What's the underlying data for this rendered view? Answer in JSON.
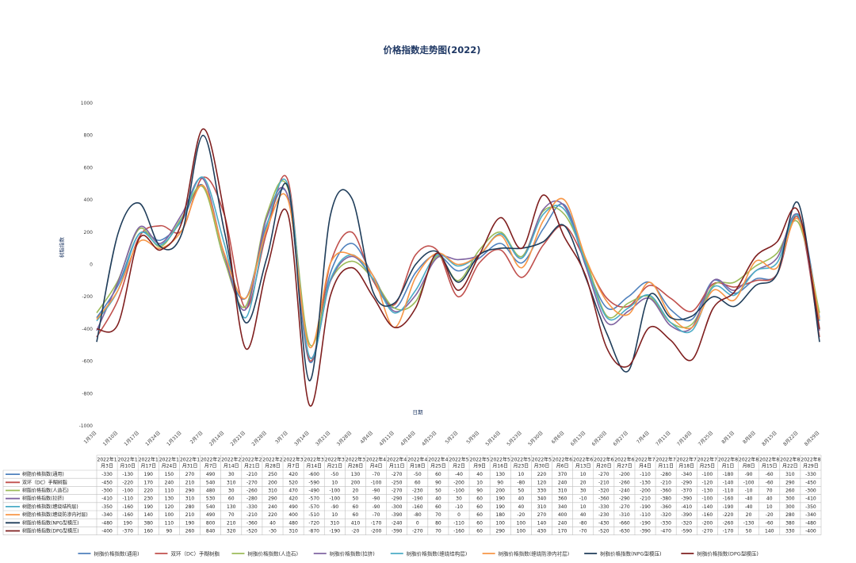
{
  "chart_data": {
    "type": "line",
    "title": "价格指数走势图(2022)",
    "xlabel": "日期",
    "ylabel": "树脂指数",
    "ylim": [
      -1000,
      1000
    ],
    "y_ticks": [
      "1000",
      "800",
      "600",
      "400",
      "200",
      "0",
      "-200",
      "-400",
      "-600",
      "-800",
      "-1000"
    ],
    "y_tick_values": [
      1000,
      800,
      600,
      400,
      200,
      0,
      -200,
      -400,
      -600,
      -800,
      -1000
    ],
    "x": [
      "1月3日",
      "1月10日",
      "1月17日",
      "1月24日",
      "1月31日",
      "2月7日",
      "2月14日",
      "2月21日",
      "2月28日",
      "3月7日",
      "3月14日",
      "3月21日",
      "3月28日",
      "4月4日",
      "4月11日",
      "4月18日",
      "4月25日",
      "5月2日",
      "5月9日",
      "5月16日",
      "5月23日",
      "5月30日",
      "6月6日",
      "6月13日",
      "6月20日",
      "6月27日",
      "7月4日",
      "7月11日",
      "7月18日",
      "7月25日",
      "8月1日",
      "8月8日",
      "8月15日",
      "8月22日",
      "8月29日"
    ],
    "x_table": [
      "2022年1月3日",
      "2022年1月10日",
      "2022年1月17日",
      "2022年1月24日",
      "2022年1月31日",
      "2022年2月7日",
      "2022年2月14日",
      "2022年2月21日",
      "2022年2月28日",
      "2022年3月7日",
      "2022年3月14日",
      "2022年3月21日",
      "2022年3月28日",
      "2022年4月4日",
      "2022年4月11日",
      "2022年4月18日",
      "2022年4月25日",
      "2022年5月2日",
      "2022年5月9日",
      "2022年5月16日",
      "2022年5月23日",
      "2022年5月30日",
      "2022年6月6日",
      "2022年6月13日",
      "2022年6月20日",
      "2022年6月27日",
      "2022年7月4日",
      "2022年7月11日",
      "2022年7月18日",
      "2022年7月25日",
      "2022年8月1日",
      "2022年8月8日",
      "2022年8月15日",
      "2022年8月22日",
      "2022年8月29日"
    ],
    "legend_position": "bottom",
    "grid": false,
    "series": [
      {
        "name": "树脂价格指数(通用)",
        "color": "#4F81BD",
        "values": [
          -330,
          -130,
          190,
          150,
          270,
          490,
          30,
          -210,
          250,
          420,
          -600,
          -50,
          130,
          -70,
          -270,
          -50,
          60,
          -40,
          40,
          130,
          10,
          220,
          370,
          10,
          -270,
          -200,
          -110,
          -280,
          -340,
          -100,
          -180,
          -90,
          -60,
          310,
          -330
        ]
      },
      {
        "name": "双环（DC）手糊树脂",
        "color": "#C0504D",
        "values": [
          -450,
          -220,
          170,
          240,
          210,
          540,
          310,
          -270,
          200,
          520,
          -590,
          10,
          200,
          -100,
          -250,
          60,
          90,
          -200,
          10,
          90,
          -80,
          120,
          240,
          20,
          -210,
          -260,
          -130,
          -210,
          -290,
          -120,
          -140,
          -100,
          -60,
          290,
          -450
        ]
      },
      {
        "name": "树脂价格指数(人造石)",
        "color": "#9BBB59",
        "values": [
          -300,
          -100,
          220,
          110,
          290,
          480,
          30,
          -260,
          310,
          470,
          -490,
          -100,
          20,
          -90,
          -270,
          -230,
          50,
          -100,
          90,
          200,
          50,
          330,
          310,
          30,
          -320,
          -240,
          -200,
          -360,
          -370,
          -130,
          -110,
          -10,
          70,
          260,
          -300
        ]
      },
      {
        "name": "树脂价格指数(拉挤)",
        "color": "#8064A2",
        "values": [
          -410,
          -110,
          230,
          130,
          310,
          530,
          60,
          -280,
          290,
          420,
          -570,
          -100,
          50,
          -90,
          -290,
          -190,
          40,
          30,
          60,
          190,
          40,
          340,
          360,
          -10,
          -360,
          -290,
          -210,
          -380,
          -390,
          -100,
          -160,
          -40,
          40,
          300,
          -410
        ]
      },
      {
        "name": "树脂价格指数(缠绕结构层)",
        "color": "#4BACC6",
        "values": [
          -350,
          -160,
          190,
          120,
          280,
          540,
          130,
          -330,
          240,
          490,
          -570,
          -90,
          60,
          -90,
          -300,
          -160,
          60,
          -10,
          60,
          190,
          40,
          310,
          340,
          10,
          -330,
          -270,
          -190,
          -360,
          -410,
          -140,
          -190,
          -40,
          10,
          300,
          -350
        ]
      },
      {
        "name": "树脂价格指数(缠绕防渗内衬层)",
        "color": "#F79646",
        "values": [
          -340,
          -160,
          140,
          100,
          210,
          490,
          70,
          -210,
          220,
          400,
          -510,
          10,
          60,
          -70,
          -390,
          -80,
          70,
          0,
          60,
          180,
          -20,
          270,
          400,
          40,
          -230,
          -310,
          -110,
          -320,
          -390,
          -160,
          -220,
          20,
          -20,
          280,
          -340
        ]
      },
      {
        "name": "树脂价格指数(NPG型模压)",
        "color": "#1F3D5A",
        "values": [
          -480,
          190,
          380,
          110,
          190,
          800,
          210,
          -360,
          40,
          480,
          -720,
          310,
          410,
          -170,
          -240,
          0,
          80,
          -110,
          60,
          100,
          100,
          140,
          240,
          -80,
          -430,
          -660,
          -190,
          -330,
          -320,
          -200,
          -260,
          -130,
          -60,
          380,
          -480
        ]
      },
      {
        "name": "树脂价格指数(DPG型模压)",
        "color": "#7F1F1F",
        "values": [
          -400,
          -370,
          160,
          90,
          260,
          840,
          320,
          -520,
          -30,
          310,
          -870,
          -190,
          -20,
          -200,
          -390,
          -270,
          70,
          -160,
          60,
          290,
          100,
          430,
          170,
          -70,
          -520,
          -630,
          -390,
          -470,
          -590,
          -270,
          -170,
          50,
          140,
          330,
          -400
        ]
      }
    ]
  }
}
